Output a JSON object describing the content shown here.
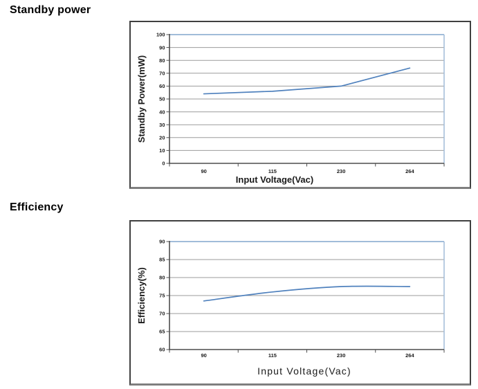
{
  "sections": [
    {
      "title": "Standby power"
    },
    {
      "title": "Efficiency"
    }
  ],
  "colors": {
    "series_line": "#4f81bd",
    "gridline": "#9b9b9b",
    "plot_border_blue": "#a0bcd9",
    "axis": "#4d4d4d",
    "text": "#1a1a1a"
  },
  "chart_data": [
    {
      "type": "line",
      "title": "Standby power",
      "categories": [
        "90",
        "115",
        "230",
        "264"
      ],
      "series": [
        {
          "name": "Standby Power",
          "values": [
            54,
            56,
            60,
            74
          ]
        }
      ],
      "xlabel": "Input Voltage(Vac)",
      "ylabel": "Standby Power(mW)",
      "ylim": [
        0,
        100
      ],
      "ytick_step": 10,
      "grid": true,
      "legend": "none"
    },
    {
      "type": "line",
      "title": "Efficiency",
      "categories": [
        "90",
        "115",
        "230",
        "264"
      ],
      "series": [
        {
          "name": "Efficiency",
          "values": [
            73.5,
            76,
            77.5,
            77.5
          ]
        }
      ],
      "xlabel": "Input Voltage(Vac)",
      "ylabel": "Efficiency(%)",
      "ylim": [
        60,
        90
      ],
      "ytick_step": 5,
      "grid": true,
      "legend": "none"
    }
  ]
}
